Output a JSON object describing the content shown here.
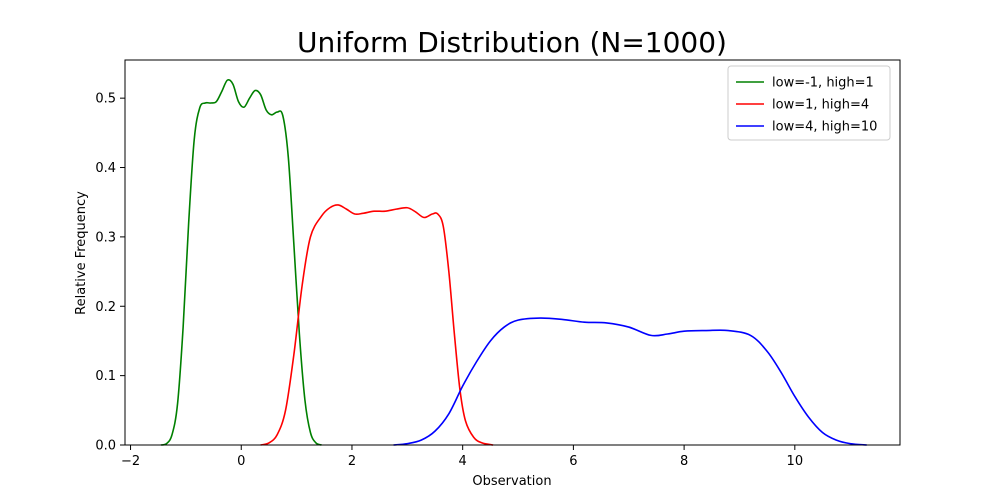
{
  "chart_data": {
    "type": "line",
    "title": "Uniform Distribution (N=1000)",
    "xlabel": "Observation",
    "ylabel": "Relative Frequency",
    "xlim": [
      -2.1,
      11.9
    ],
    "ylim": [
      0,
      0.555
    ],
    "xticks": [
      -2,
      0,
      2,
      4,
      6,
      8,
      10
    ],
    "yticks": [
      0.0,
      0.1,
      0.2,
      0.3,
      0.4,
      0.5
    ],
    "ytick_labels": [
      "0.0",
      "0.1",
      "0.2",
      "0.3",
      "0.4",
      "0.5"
    ],
    "grid": false,
    "legend_position": "top-right",
    "series": [
      {
        "name": "low=-1, high=1",
        "color": "#008000",
        "points": [
          [
            -1.45,
            0.0
          ],
          [
            -1.35,
            0.002
          ],
          [
            -1.25,
            0.015
          ],
          [
            -1.15,
            0.06
          ],
          [
            -1.05,
            0.17
          ],
          [
            -0.95,
            0.32
          ],
          [
            -0.85,
            0.44
          ],
          [
            -0.75,
            0.486
          ],
          [
            -0.65,
            0.493
          ],
          [
            -0.55,
            0.493
          ],
          [
            -0.45,
            0.495
          ],
          [
            -0.35,
            0.51
          ],
          [
            -0.25,
            0.526
          ],
          [
            -0.15,
            0.52
          ],
          [
            -0.05,
            0.495
          ],
          [
            0.05,
            0.487
          ],
          [
            0.15,
            0.5
          ],
          [
            0.25,
            0.511
          ],
          [
            0.35,
            0.505
          ],
          [
            0.45,
            0.483
          ],
          [
            0.55,
            0.476
          ],
          [
            0.65,
            0.48
          ],
          [
            0.75,
            0.475
          ],
          [
            0.85,
            0.415
          ],
          [
            0.95,
            0.29
          ],
          [
            1.05,
            0.16
          ],
          [
            1.15,
            0.065
          ],
          [
            1.25,
            0.018
          ],
          [
            1.35,
            0.003
          ],
          [
            1.45,
            0.0
          ]
        ]
      },
      {
        "name": "low=1, high=4",
        "color": "#ff0000",
        "points": [
          [
            0.35,
            0.0
          ],
          [
            0.5,
            0.003
          ],
          [
            0.65,
            0.015
          ],
          [
            0.8,
            0.05
          ],
          [
            0.95,
            0.13
          ],
          [
            1.1,
            0.23
          ],
          [
            1.25,
            0.3
          ],
          [
            1.45,
            0.33
          ],
          [
            1.6,
            0.342
          ],
          [
            1.75,
            0.346
          ],
          [
            1.9,
            0.34
          ],
          [
            2.05,
            0.333
          ],
          [
            2.2,
            0.334
          ],
          [
            2.4,
            0.337
          ],
          [
            2.6,
            0.337
          ],
          [
            2.8,
            0.34
          ],
          [
            3.0,
            0.342
          ],
          [
            3.15,
            0.336
          ],
          [
            3.3,
            0.328
          ],
          [
            3.45,
            0.333
          ],
          [
            3.55,
            0.333
          ],
          [
            3.65,
            0.315
          ],
          [
            3.75,
            0.25
          ],
          [
            3.85,
            0.16
          ],
          [
            3.95,
            0.08
          ],
          [
            4.05,
            0.035
          ],
          [
            4.2,
            0.011
          ],
          [
            4.35,
            0.003
          ],
          [
            4.55,
            0.0
          ]
        ]
      },
      {
        "name": "low=4, high=10",
        "color": "#0000ff",
        "points": [
          [
            2.75,
            0.0
          ],
          [
            3.0,
            0.002
          ],
          [
            3.25,
            0.007
          ],
          [
            3.5,
            0.02
          ],
          [
            3.75,
            0.045
          ],
          [
            4.0,
            0.085
          ],
          [
            4.25,
            0.12
          ],
          [
            4.5,
            0.15
          ],
          [
            4.75,
            0.17
          ],
          [
            5.0,
            0.18
          ],
          [
            5.4,
            0.183
          ],
          [
            5.8,
            0.181
          ],
          [
            6.2,
            0.177
          ],
          [
            6.6,
            0.176
          ],
          [
            7.0,
            0.17
          ],
          [
            7.4,
            0.158
          ],
          [
            7.7,
            0.16
          ],
          [
            8.0,
            0.164
          ],
          [
            8.4,
            0.165
          ],
          [
            8.8,
            0.165
          ],
          [
            9.2,
            0.158
          ],
          [
            9.5,
            0.135
          ],
          [
            9.75,
            0.105
          ],
          [
            10.0,
            0.07
          ],
          [
            10.25,
            0.04
          ],
          [
            10.5,
            0.018
          ],
          [
            10.75,
            0.007
          ],
          [
            11.0,
            0.002
          ],
          [
            11.3,
            0.0
          ]
        ]
      }
    ]
  }
}
